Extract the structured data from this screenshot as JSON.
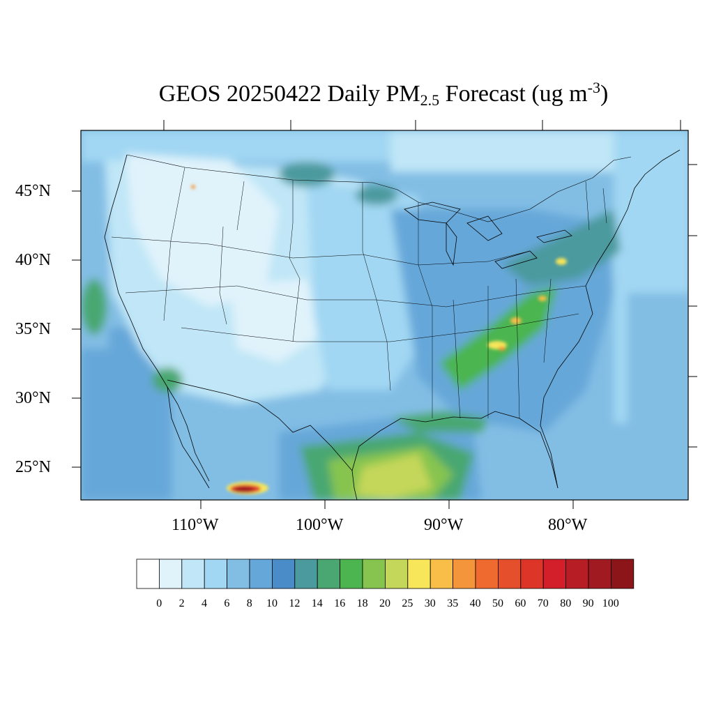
{
  "title": {
    "main": "GEOS 20250422 Daily PM",
    "subscript": "2.5",
    "forecast": " Forecast (ug m",
    "superscript": "-3",
    "close": ")"
  },
  "axes": {
    "lat_labels": [
      "45°N",
      "40°N",
      "35°N",
      "30°N",
      "25°N"
    ],
    "lon_labels": [
      "110°W",
      "100°W",
      "90°W",
      "80°W"
    ]
  },
  "colorbar": {
    "labels": [
      "0",
      "2",
      "4",
      "6",
      "8",
      "10",
      "12",
      "14",
      "16",
      "18",
      "20",
      "25",
      "30",
      "35",
      "40",
      "50",
      "60",
      "70",
      "80",
      "90",
      "100"
    ],
    "colors": [
      "#ffffff",
      "#e0f3fb",
      "#c0e6f7",
      "#a1d7f3",
      "#82bde4",
      "#66a7d9",
      "#4a8cc8",
      "#4b9a9e",
      "#4aa771",
      "#4cb54f",
      "#86c44f",
      "#c4d75a",
      "#f7e65a",
      "#f8be48",
      "#f5953b",
      "#ef6a2e",
      "#e54f2b",
      "#de3529",
      "#d31f2a",
      "#b71d25",
      "#a01a21",
      "#8b1519"
    ]
  }
}
